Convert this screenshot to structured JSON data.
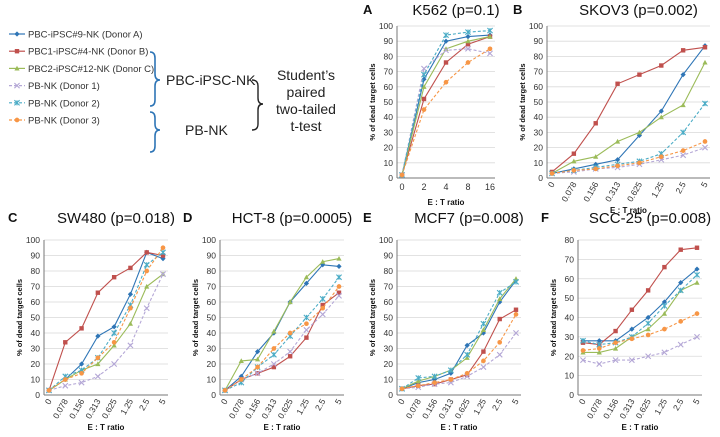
{
  "legend": {
    "entries": [
      {
        "label": "PBC-iPSC#9-NK (Donor A)",
        "color": "#2e75b6",
        "marker": "diamond",
        "dash": "solid"
      },
      {
        "label": "PBC1-iPSC#4-NK (Donor B)",
        "color": "#c0504d",
        "marker": "square",
        "dash": "solid"
      },
      {
        "label": "PBC2-iPSC#12-NK (Donor C)",
        "color": "#9bbb59",
        "marker": "triangle",
        "dash": "solid"
      },
      {
        "label": "PB-NK (Donor 1)",
        "color": "#b4a7d6",
        "marker": "x",
        "dash": "dashed"
      },
      {
        "label": "PB-NK (Donor 2)",
        "color": "#4bacc6",
        "marker": "star",
        "dash": "dashed"
      },
      {
        "label": "PB-NK (Donor 3)",
        "color": "#f79646",
        "marker": "circle",
        "dash": "dashed"
      }
    ],
    "group1": "PBC-iPSC-NK",
    "group2": "PB-NK",
    "test_lines": [
      "Student’s",
      "paired",
      "two-tailed",
      "t-test"
    ]
  },
  "chart_data": [
    {
      "panel": "A",
      "type": "line",
      "title": "K562 (p=0.1)",
      "xlabel": "E : T ratio",
      "ylabel": "% of dead target cells",
      "categories": [
        "0",
        "2",
        "4",
        "8",
        "16"
      ],
      "ylim": [
        0,
        100
      ],
      "yticks": [
        0,
        10,
        20,
        30,
        40,
        50,
        60,
        70,
        80,
        90,
        100
      ],
      "series": [
        {
          "values": [
            2,
            65,
            90,
            93,
            94
          ]
        },
        {
          "values": [
            2,
            52,
            76,
            88,
            93
          ]
        },
        {
          "values": [
            2,
            60,
            85,
            90,
            93
          ]
        },
        {
          "values": [
            2,
            72,
            84,
            85,
            82
          ]
        },
        {
          "values": [
            2,
            68,
            94,
            96,
            97
          ]
        },
        {
          "values": [
            2,
            45,
            63,
            76,
            85
          ]
        }
      ]
    },
    {
      "panel": "B",
      "type": "line",
      "title": "SKOV3 (p=0.002)",
      "xlabel": "E : T ratio",
      "ylabel": "% of dead target cells",
      "categories": [
        "0",
        "0.078",
        "0.156",
        "0.313",
        "0.625",
        "1.25",
        "2.5",
        "5"
      ],
      "ylim": [
        0,
        100
      ],
      "yticks": [
        0,
        10,
        20,
        30,
        40,
        50,
        60,
        70,
        80,
        90,
        100
      ],
      "series": [
        {
          "values": [
            3,
            6,
            9,
            12,
            28,
            44,
            68,
            87
          ]
        },
        {
          "values": [
            4,
            16,
            36,
            62,
            68,
            74,
            84,
            86
          ]
        },
        {
          "values": [
            3,
            11,
            14,
            24,
            30,
            40,
            48,
            76
          ]
        },
        {
          "values": [
            3,
            4,
            6,
            7,
            9,
            12,
            15,
            20
          ]
        },
        {
          "values": [
            3,
            5,
            7,
            9,
            11,
            16,
            30,
            49
          ]
        },
        {
          "values": [
            3,
            5,
            6,
            8,
            10,
            14,
            18,
            24
          ]
        }
      ]
    },
    {
      "panel": "C",
      "type": "line",
      "title": "SW480 (p=0.018)",
      "xlabel": "E : T ratio",
      "ylabel": "% of dead target cells",
      "categories": [
        "0",
        "0.078",
        "0.156",
        "0.313",
        "0.625",
        "1.25",
        "2.5",
        "5"
      ],
      "ylim": [
        0,
        100
      ],
      "yticks": [
        0,
        10,
        20,
        30,
        40,
        50,
        60,
        70,
        80,
        90,
        100
      ],
      "series": [
        {
          "values": [
            3,
            10,
            20,
            38,
            44,
            65,
            92,
            88
          ]
        },
        {
          "values": [
            3,
            34,
            43,
            66,
            76,
            82,
            92,
            90
          ]
        },
        {
          "values": [
            3,
            10,
            16,
            20,
            32,
            46,
            70,
            78
          ]
        },
        {
          "values": [
            3,
            6,
            8,
            12,
            20,
            32,
            56,
            78
          ]
        },
        {
          "values": [
            3,
            12,
            16,
            24,
            40,
            58,
            84,
            92
          ]
        },
        {
          "values": [
            3,
            10,
            14,
            24,
            34,
            56,
            80,
            95
          ]
        }
      ]
    },
    {
      "panel": "D",
      "type": "line",
      "title": "HCT-8 (p=0.0005)",
      "xlabel": "E : T ratio",
      "ylabel": "% of dead target cells",
      "categories": [
        "0",
        "0.078",
        "0.156",
        "0.313",
        "0.625",
        "1.25",
        "2.5",
        "5"
      ],
      "ylim": [
        0,
        100
      ],
      "yticks": [
        0,
        10,
        20,
        30,
        40,
        50,
        60,
        70,
        80,
        90,
        100
      ],
      "series": [
        {
          "values": [
            3,
            12,
            28,
            40,
            60,
            72,
            84,
            83
          ]
        },
        {
          "values": [
            3,
            10,
            14,
            18,
            25,
            37,
            58,
            66
          ]
        },
        {
          "values": [
            3,
            22,
            23,
            41,
            60,
            76,
            86,
            88
          ]
        },
        {
          "values": [
            3,
            10,
            14,
            20,
            28,
            42,
            52,
            64
          ]
        },
        {
          "values": [
            3,
            8,
            18,
            26,
            38,
            50,
            62,
            76
          ]
        },
        {
          "values": [
            3,
            10,
            18,
            30,
            40,
            46,
            56,
            70
          ]
        }
      ]
    },
    {
      "panel": "E",
      "type": "line",
      "title": "MCF7 (p=0.008)",
      "xlabel": "E : T ratio",
      "ylabel": "% of dead target cells",
      "categories": [
        "0",
        "0.078",
        "0.156",
        "0.313",
        "0.625",
        "1.25",
        "2.5",
        "5"
      ],
      "ylim": [
        0,
        100
      ],
      "yticks": [
        0,
        10,
        20,
        30,
        40,
        50,
        60,
        70,
        80,
        90,
        100
      ],
      "series": [
        {
          "values": [
            4,
            8,
            10,
            14,
            32,
            40,
            60,
            74
          ]
        },
        {
          "values": [
            4,
            6,
            7,
            10,
            13,
            28,
            49,
            55
          ]
        },
        {
          "values": [
            4,
            9,
            12,
            16,
            24,
            42,
            62,
            75
          ]
        },
        {
          "values": [
            4,
            5,
            7,
            8,
            12,
            18,
            26,
            40
          ]
        },
        {
          "values": [
            4,
            11,
            12,
            16,
            26,
            46,
            66,
            73
          ]
        },
        {
          "values": [
            4,
            6,
            8,
            10,
            14,
            22,
            34,
            52
          ]
        }
      ]
    },
    {
      "panel": "F",
      "type": "line",
      "title": "SCC-25 (p=0.008)",
      "xlabel": "E : T ratio",
      "ylabel": "% of dead target cells",
      "categories": [
        "0",
        "0.078",
        "0.156",
        "0.313",
        "0.625",
        "1.25",
        "2.5",
        "5"
      ],
      "ylim": [
        0,
        80
      ],
      "yticks": [
        0,
        10,
        20,
        30,
        40,
        50,
        60,
        70,
        80
      ],
      "series": [
        {
          "values": [
            28,
            28,
            28,
            34,
            40,
            48,
            58,
            65
          ]
        },
        {
          "values": [
            27,
            26,
            33,
            44,
            54,
            66,
            75,
            76
          ]
        },
        {
          "values": [
            22,
            22,
            24,
            30,
            34,
            42,
            54,
            58
          ]
        },
        {
          "values": [
            18,
            16,
            18,
            18,
            20,
            22,
            26,
            30
          ]
        },
        {
          "values": [
            28,
            26,
            27,
            30,
            37,
            46,
            54,
            62
          ]
        },
        {
          "values": [
            23,
            24,
            27,
            29,
            31,
            34,
            38,
            42
          ]
        }
      ]
    }
  ]
}
